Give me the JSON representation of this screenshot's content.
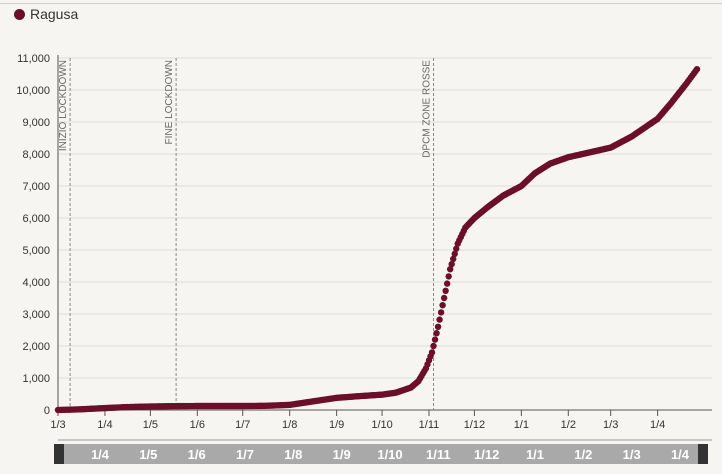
{
  "chart_data": {
    "type": "scatter",
    "title": "",
    "xlabel": "",
    "ylabel": "",
    "ylim": [
      0,
      11000
    ],
    "grid": true,
    "legend_position": "top-left",
    "series": [
      {
        "name": "Ragusa",
        "color": "#6b0f2a",
        "points": [
          [
            "2020-03-01",
            0
          ],
          [
            "2020-03-15",
            20
          ],
          [
            "2020-04-01",
            60
          ],
          [
            "2020-04-15",
            90
          ],
          [
            "2020-05-01",
            110
          ],
          [
            "2020-05-15",
            120
          ],
          [
            "2020-06-01",
            125
          ],
          [
            "2020-06-15",
            125
          ],
          [
            "2020-07-01",
            125
          ],
          [
            "2020-07-15",
            130
          ],
          [
            "2020-08-01",
            160
          ],
          [
            "2020-08-15",
            260
          ],
          [
            "2020-09-01",
            380
          ],
          [
            "2020-09-15",
            430
          ],
          [
            "2020-10-01",
            480
          ],
          [
            "2020-10-10",
            540
          ],
          [
            "2020-10-20",
            700
          ],
          [
            "2020-10-25",
            900
          ],
          [
            "2020-10-30",
            1300
          ],
          [
            "2020-11-03",
            1800
          ],
          [
            "2020-11-07",
            2600
          ],
          [
            "2020-11-11",
            3500
          ],
          [
            "2020-11-15",
            4400
          ],
          [
            "2020-11-20",
            5200
          ],
          [
            "2020-11-25",
            5700
          ],
          [
            "2020-12-01",
            6000
          ],
          [
            "2020-12-10",
            6350
          ],
          [
            "2020-12-20",
            6700
          ],
          [
            "2021-01-01",
            7000
          ],
          [
            "2021-01-10",
            7400
          ],
          [
            "2021-01-20",
            7700
          ],
          [
            "2021-02-01",
            7900
          ],
          [
            "2021-02-15",
            8050
          ],
          [
            "2021-03-01",
            8200
          ],
          [
            "2021-03-15",
            8550
          ],
          [
            "2021-04-01",
            9100
          ],
          [
            "2021-04-10",
            9600
          ],
          [
            "2021-04-20",
            10200
          ],
          [
            "2021-04-27",
            10650
          ]
        ]
      }
    ],
    "y_ticks": [
      "0",
      "1,000",
      "2,000",
      "3,000",
      "4,000",
      "5,000",
      "6,000",
      "7,000",
      "8,000",
      "9,000",
      "10,000",
      "11,000"
    ],
    "x_ticks": [
      {
        "date": "2020-03-01",
        "label": "1/3"
      },
      {
        "date": "2020-04-01",
        "label": "1/4"
      },
      {
        "date": "2020-05-01",
        "label": "1/5"
      },
      {
        "date": "2020-06-01",
        "label": "1/6"
      },
      {
        "date": "2020-07-01",
        "label": "1/7"
      },
      {
        "date": "2020-08-01",
        "label": "1/8"
      },
      {
        "date": "2020-09-01",
        "label": "1/9"
      },
      {
        "date": "2020-10-01",
        "label": "1/10"
      },
      {
        "date": "2020-11-01",
        "label": "1/11"
      },
      {
        "date": "2020-12-01",
        "label": "1/12"
      },
      {
        "date": "2021-01-01",
        "label": "1/1"
      },
      {
        "date": "2021-02-01",
        "label": "1/2"
      },
      {
        "date": "2021-03-01",
        "label": "1/3"
      },
      {
        "date": "2021-04-01",
        "label": "1/4"
      }
    ],
    "annotations": [
      {
        "date": "2020-03-09",
        "label": "INIZIO LOCKDOWN"
      },
      {
        "date": "2020-05-18",
        "label": "FINE LOCKDOWN"
      },
      {
        "date": "2020-11-04",
        "label": "DPCM ZONE ROSSE"
      }
    ],
    "navigator_labels": [
      "1/4",
      "1/5",
      "1/6",
      "1/7",
      "1/8",
      "1/9",
      "1/10",
      "1/11",
      "1/12",
      "1/1",
      "1/2",
      "1/3",
      "1/4"
    ]
  },
  "colors": {
    "series": "#6b0f2a",
    "grid": "#dddddd",
    "navigator": "#a9a9a9"
  }
}
